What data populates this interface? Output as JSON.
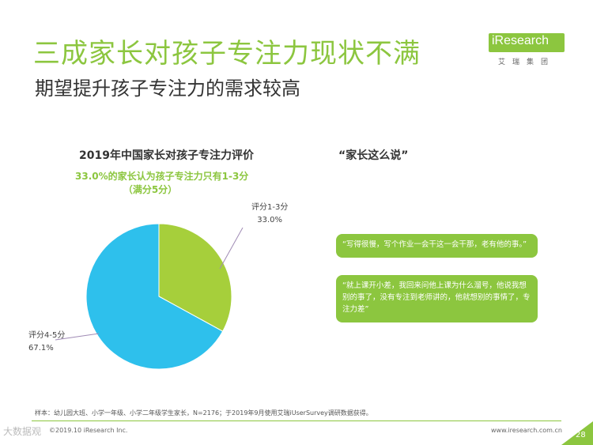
{
  "slide": {
    "title": "三成家长对孩子专注力现状不满",
    "subtitle": "期望提升孩子专注力的需求较高"
  },
  "logo": {
    "name": "iResearch",
    "chinese": "艾瑞集团"
  },
  "chart_data": {
    "type": "pie",
    "title": "2019年中国家长对孩子专注力评价",
    "note_line1": "33.0%的家长认为孩子专注力只有1-3分",
    "note_line2": "（满分5分）",
    "slices": [
      {
        "label": "评分1-3分",
        "value": 33.0,
        "value_text": "33.0%",
        "color": "#a6cf3b"
      },
      {
        "label": "评分4-5分",
        "value": 67.1,
        "value_text": "67.1%",
        "color": "#2ec0ec"
      }
    ]
  },
  "quotes": {
    "title": "“家长这么说”",
    "items": [
      "“写得很慢，写个作业一会干这一会干那，老有他的事。”",
      "“就上课开小差，我回来问他上课为什么溜号，他说我想别的事了，没有专注到老师讲的，他就想别的事情了，专注力差”"
    ]
  },
  "footer": {
    "note": "样本：幼儿园大班、小学一年级、小学二年级学生家长，N=2176；于2019年9月使用艾瑞iUserSurvey调研数据获得。",
    "copyright": "©2019.10 iResearch Inc.",
    "website": "www.iresearch.com.cn",
    "page_number": "28",
    "watermark": "大数据观"
  },
  "colors": {
    "accent": "#8cc63f"
  }
}
